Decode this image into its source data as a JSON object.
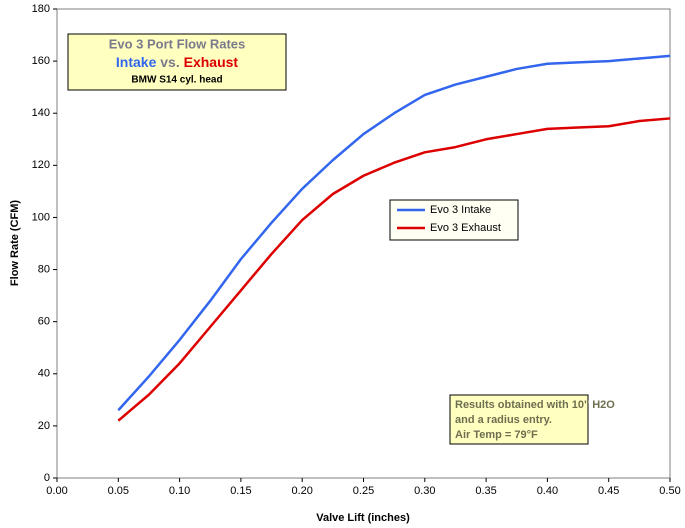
{
  "chart_data": {
    "type": "line",
    "title": "Evo 3 Port Flow Rates",
    "title_words": [
      "Intake",
      "vs.",
      "Exhaust"
    ],
    "subtitle": "BMW S14 cyl. head",
    "x_label": "Valve Lift (inches)",
    "y_label": "Flow Rate (CFM)",
    "annotation": [
      "Results obtained with 10\" H2O",
      "and a radius entry.",
      "Air Temp = 79°F"
    ],
    "x": [
      0.05,
      0.075,
      0.1,
      0.125,
      0.15,
      0.175,
      0.2,
      0.225,
      0.25,
      0.275,
      0.3,
      0.325,
      0.35,
      0.375,
      0.4,
      0.425,
      0.45,
      0.475,
      0.5
    ],
    "series": [
      {
        "name": "Evo 3 Intake",
        "color": "#3366ee",
        "values": [
          26,
          39,
          53,
          68,
          84,
          98,
          111,
          122,
          132,
          140,
          147,
          151,
          154,
          157,
          159,
          159.5,
          160,
          161,
          162
        ]
      },
      {
        "name": "Evo 3 Exhaust",
        "color": "#dd0000",
        "values": [
          22,
          32,
          44,
          58,
          72,
          86,
          99,
          109,
          116,
          121,
          125,
          127,
          130,
          132,
          134,
          134.5,
          135,
          137,
          138
        ]
      }
    ],
    "xlim": [
      0,
      0.5
    ],
    "xticks": [
      {
        "value": 0,
        "label": "0.00"
      },
      {
        "value": 0.05,
        "label": "0.05"
      },
      {
        "value": 0.1,
        "label": "0.10"
      },
      {
        "value": 0.15,
        "label": "0.15"
      },
      {
        "value": 0.2,
        "label": "0.20"
      },
      {
        "value": 0.25,
        "label": "0.25"
      },
      {
        "value": 0.3,
        "label": "0.30"
      },
      {
        "value": 0.35,
        "label": "0.35"
      },
      {
        "value": 0.4,
        "label": "0.40"
      },
      {
        "value": 0.45,
        "label": "0.45"
      },
      {
        "value": 0.5,
        "label": "0.50"
      }
    ],
    "ylim": [
      0,
      180
    ],
    "yticks": [
      0,
      20,
      40,
      60,
      80,
      100,
      120,
      140,
      160,
      180
    ]
  }
}
